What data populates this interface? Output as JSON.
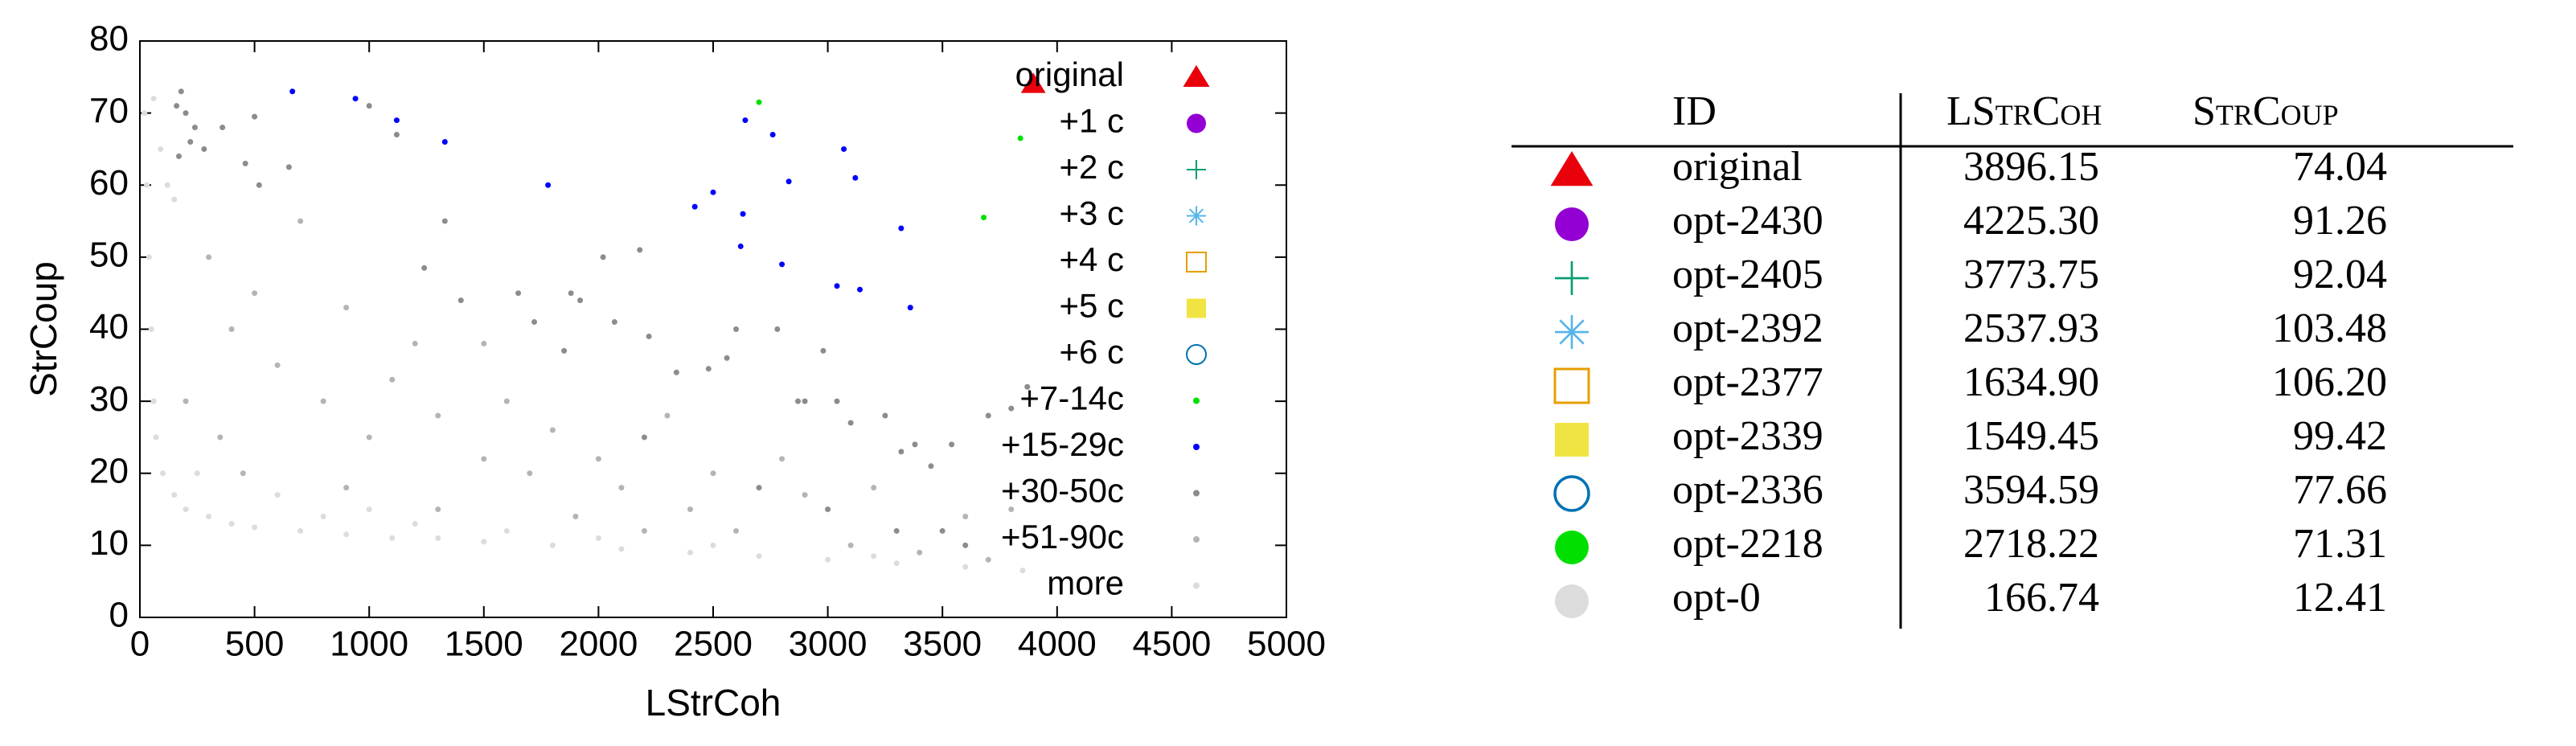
{
  "chart_data": {
    "type": "scatter",
    "x_label": "LStrCoh",
    "y_label": "StrCoup",
    "xlim": [
      0,
      5000
    ],
    "xticks": [
      0,
      500,
      1000,
      1500,
      2000,
      2500,
      3000,
      3500,
      4000,
      4500,
      5000
    ],
    "ylim": [
      0,
      80
    ],
    "yticks": [
      0,
      10,
      20,
      30,
      40,
      50,
      60,
      70,
      80
    ],
    "legend": "upper right",
    "series": [
      {
        "name": "original",
        "color": "#e8000b",
        "marker": "triangle",
        "x": [
          3896.15
        ],
        "values": [
          74.04
        ]
      },
      {
        "name": "+1 c",
        "color": "#9400d3",
        "marker": "circle",
        "x": [],
        "values": []
      },
      {
        "name": "+2 c",
        "color": "#009e73",
        "marker": "plus",
        "x": [],
        "values": []
      },
      {
        "name": "+3 c",
        "color": "#56b4e9",
        "marker": "star",
        "x": [],
        "values": []
      },
      {
        "name": "+4 c",
        "color": "#e69f00",
        "marker": "square-open",
        "x": [],
        "values": []
      },
      {
        "name": "+5 c",
        "color": "#f0e442",
        "marker": "square",
        "x": [],
        "values": []
      },
      {
        "name": "+6 c",
        "color": "#0072b2",
        "marker": "circle-open",
        "x": [],
        "values": []
      },
      {
        "name": "+7-14c",
        "color": "#00e000",
        "marker": "dot",
        "x": [
          2700,
          3840,
          3680
        ],
        "values": [
          71.5,
          66.5,
          55.5
        ]
      },
      {
        "name": "+15-29c",
        "color": "#0000ff",
        "marker": "dot",
        "x": [
          665,
          940,
          1120,
          1330,
          1780,
          2420,
          2500,
          2620,
          2630,
          2640,
          2760,
          2800,
          2830,
          3040,
          3070,
          3120,
          3140,
          3320,
          3360
        ],
        "values": [
          73,
          72,
          69,
          66,
          60,
          57,
          59,
          51.5,
          56,
          69,
          67,
          49,
          60.5,
          46,
          65,
          61,
          45.5,
          54,
          43
        ]
      },
      {
        "name": "+30-50c",
        "color": "#8c8c8c",
        "marker": "dot",
        "x": [
          180,
          160,
          200,
          240,
          220,
          280,
          170,
          360,
          460,
          500,
          520,
          650,
          1000,
          1120,
          1330,
          1240,
          1650,
          1720,
          1850,
          1880,
          1920,
          2020,
          2180,
          2070,
          2220,
          2340,
          2480,
          2560,
          2600,
          2870,
          2900,
          2780,
          2980,
          3040,
          3100,
          3250,
          3320,
          3380,
          3450,
          3540,
          3700,
          3800,
          3870,
          2200,
          1400,
          2700,
          3000,
          3300,
          3500,
          3600
        ],
        "values": [
          73,
          71,
          70,
          68,
          66,
          65,
          64,
          68,
          63,
          69.5,
          60,
          62.5,
          71,
          67,
          55,
          48.5,
          45,
          41,
          37,
          45,
          44,
          50,
          51,
          41,
          39,
          34,
          34.5,
          36,
          40,
          30,
          30,
          40,
          37,
          30,
          27,
          28,
          23,
          24,
          21,
          24,
          28,
          29,
          32,
          25,
          44,
          18,
          15,
          12,
          12,
          10
        ]
      },
      {
        "name": "+51-90c",
        "color": "#b4b4b4",
        "marker": "dot",
        "x": [
          300,
          400,
          600,
          800,
          900,
          1000,
          1100,
          1200,
          1300,
          1500,
          1600,
          1700,
          1800,
          2000,
          2100,
          2300,
          2400,
          2500,
          2600,
          2800,
          2900,
          3100,
          3200,
          3400,
          3600,
          3700,
          3800,
          700,
          500,
          1500,
          200,
          350,
          450,
          900,
          1300,
          1900,
          2200
        ],
        "values": [
          50,
          40,
          35,
          30,
          43,
          25,
          33,
          38,
          28,
          22,
          30,
          20,
          26,
          22,
          18,
          28,
          15,
          20,
          12,
          22,
          17,
          10,
          18,
          9,
          14,
          8,
          15,
          55,
          45,
          38,
          30,
          25,
          20,
          18,
          15,
          14,
          12
        ]
      },
      {
        "name": "more",
        "color": "#dcdcdc",
        "marker": "dot",
        "x": [
          20,
          30,
          40,
          50,
          60,
          70,
          100,
          150,
          200,
          300,
          400,
          500,
          700,
          900,
          1100,
          1300,
          1500,
          1800,
          2100,
          2400,
          2700,
          3000,
          3300,
          3600,
          3850,
          60,
          90,
          120,
          150,
          250,
          600,
          800,
          1000,
          1200,
          1600,
          2000,
          2500,
          3200
        ],
        "values": [
          70,
          60,
          50,
          40,
          30,
          25,
          20,
          17,
          15,
          14,
          13,
          12.5,
          12,
          11.5,
          11,
          11,
          10.5,
          10,
          9.5,
          9,
          8.5,
          8,
          7.5,
          7,
          6.5,
          72,
          65,
          60,
          58,
          20,
          17,
          14,
          15,
          13,
          12,
          11,
          10,
          8.5
        ]
      }
    ]
  },
  "table": {
    "columns": [
      "ID",
      "LStrCoh",
      "StrCoup"
    ],
    "rows": [
      {
        "marker": "triangle",
        "color": "#e8000b",
        "id": "original",
        "lstrcoh": "3896.15",
        "strcoup": "74.04"
      },
      {
        "marker": "circle",
        "color": "#9400d3",
        "id": "opt-2430",
        "lstrcoh": "4225.30",
        "strcoup": "91.26"
      },
      {
        "marker": "plus",
        "color": "#009e73",
        "id": "opt-2405",
        "lstrcoh": "3773.75",
        "strcoup": "92.04"
      },
      {
        "marker": "star",
        "color": "#56b4e9",
        "id": "opt-2392",
        "lstrcoh": "2537.93",
        "strcoup": "103.48"
      },
      {
        "marker": "square-open",
        "color": "#e69f00",
        "id": "opt-2377",
        "lstrcoh": "1634.90",
        "strcoup": "106.20"
      },
      {
        "marker": "square",
        "color": "#f0e442",
        "id": "opt-2339",
        "lstrcoh": "1549.45",
        "strcoup": "99.42"
      },
      {
        "marker": "circle-open",
        "color": "#0072b2",
        "id": "opt-2336",
        "lstrcoh": "3594.59",
        "strcoup": "77.66"
      },
      {
        "marker": "circle",
        "color": "#00e000",
        "id": "opt-2218",
        "lstrcoh": "2718.22",
        "strcoup": "71.31"
      },
      {
        "marker": "circle",
        "color": "#dcdcdc",
        "id": "opt-0",
        "lstrcoh": "166.74",
        "strcoup": "12.41"
      }
    ]
  }
}
